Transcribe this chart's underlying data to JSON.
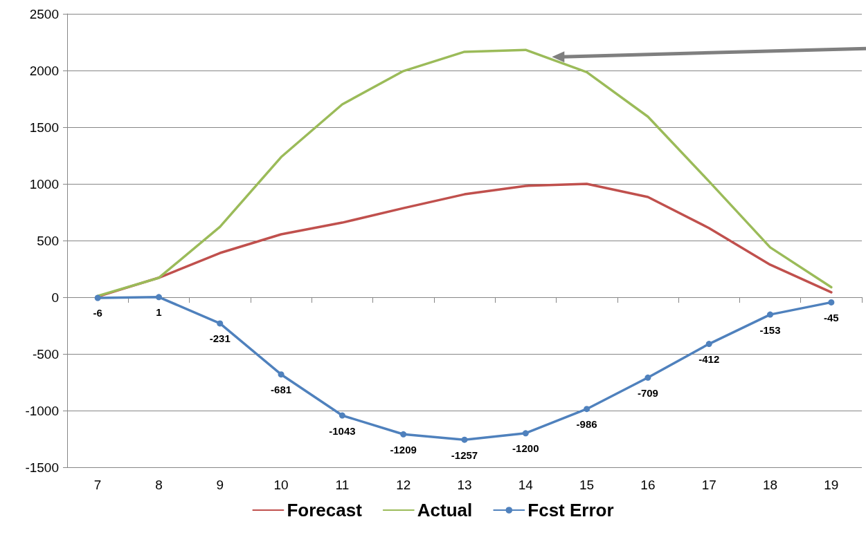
{
  "chart_data": {
    "type": "line",
    "categories": [
      "7",
      "8",
      "9",
      "10",
      "11",
      "12",
      "13",
      "14",
      "15",
      "16",
      "17",
      "18",
      "19"
    ],
    "series": [
      {
        "name": "Forecast",
        "color": "#c0504d",
        "marker": "none",
        "values": [
          5,
          172,
          390,
          555,
          658,
          786,
          908,
          982,
          1000,
          884,
          610,
          287,
          43
        ]
      },
      {
        "name": "Actual",
        "color": "#9bbb59",
        "marker": "none",
        "values": [
          11,
          171,
          621,
          1236,
          1701,
          1995,
          2165,
          2182,
          1986,
          1593,
          1022,
          440,
          88
        ]
      },
      {
        "name": "Fcst Error",
        "color": "#4f81bd",
        "marker": "circle",
        "values": [
          -6,
          1,
          -231,
          -681,
          -1043,
          -1209,
          -1257,
          -1200,
          -986,
          -709,
          -412,
          -153,
          -45
        ],
        "value_labels": [
          "-6",
          "1",
          "-231",
          "-681",
          "-1043",
          "-1209",
          "-1257",
          "-1200",
          "-986",
          "-709",
          "-412",
          "-153",
          "-45"
        ]
      }
    ],
    "ylim": [
      -1500,
      2500
    ],
    "yticks": [
      -1500,
      -1000,
      -500,
      0,
      500,
      1000,
      1500,
      2000,
      2500
    ],
    "grid": "y",
    "legend": "bottom",
    "line_style": "solid"
  }
}
